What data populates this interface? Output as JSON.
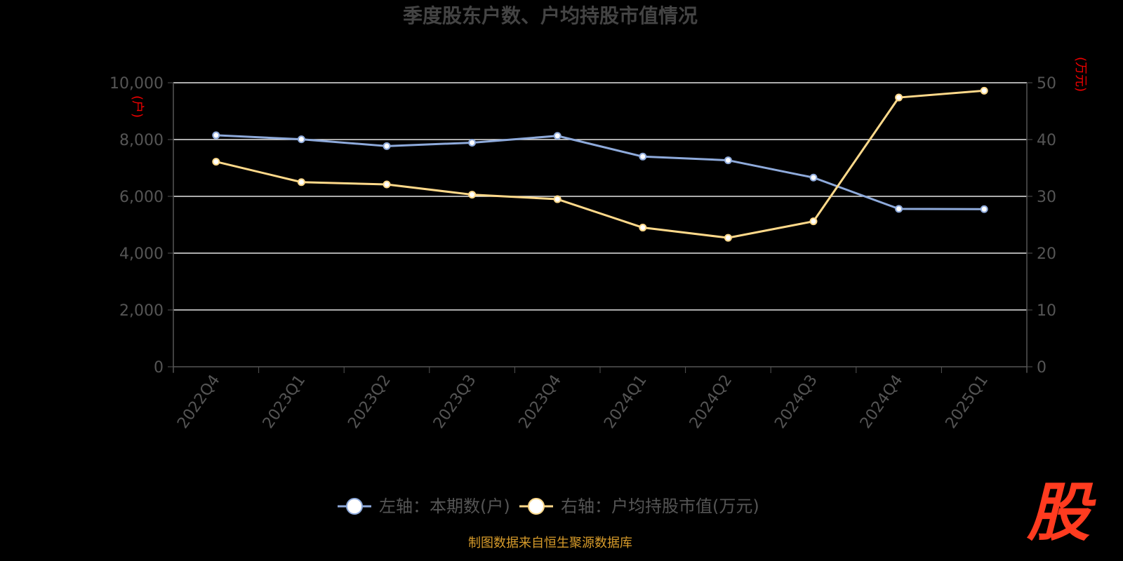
{
  "chart_data": {
    "type": "line",
    "title": "季度股东户数、户均持股市值情况",
    "categories": [
      "2022Q4",
      "2023Q1",
      "2023Q2",
      "2023Q3",
      "2023Q4",
      "2024Q1",
      "2024Q2",
      "2024Q3",
      "2024Q4",
      "2025Q1"
    ],
    "y_left": {
      "ticks": [
        "0",
        "2,000",
        "4,000",
        "6,000",
        "8,000",
        "10,000"
      ],
      "ylim": [
        0,
        10000
      ],
      "unit": "(户)"
    },
    "y_right": {
      "ticks": [
        "0",
        "10",
        "20",
        "30",
        "40",
        "50"
      ],
      "ylim": [
        0,
        50
      ],
      "unit": "(万元)"
    },
    "series": [
      {
        "name": "左轴：本期数(户)",
        "axis": "left",
        "color": "#8eaadb",
        "values": [
          8150,
          8010,
          7770,
          7890,
          8130,
          7400,
          7270,
          6660,
          5560,
          5550
        ]
      },
      {
        "name": "右轴：户均持股市值(万元)",
        "axis": "right",
        "color": "#ffd98a",
        "values": [
          36.1,
          32.5,
          32.1,
          30.3,
          29.5,
          24.5,
          22.7,
          25.6,
          47.4,
          48.6
        ]
      }
    ],
    "grid": true,
    "legend": "bottom-center"
  },
  "footer": {
    "source": "制图数据来自恒生聚源数据库",
    "logo": "股"
  }
}
